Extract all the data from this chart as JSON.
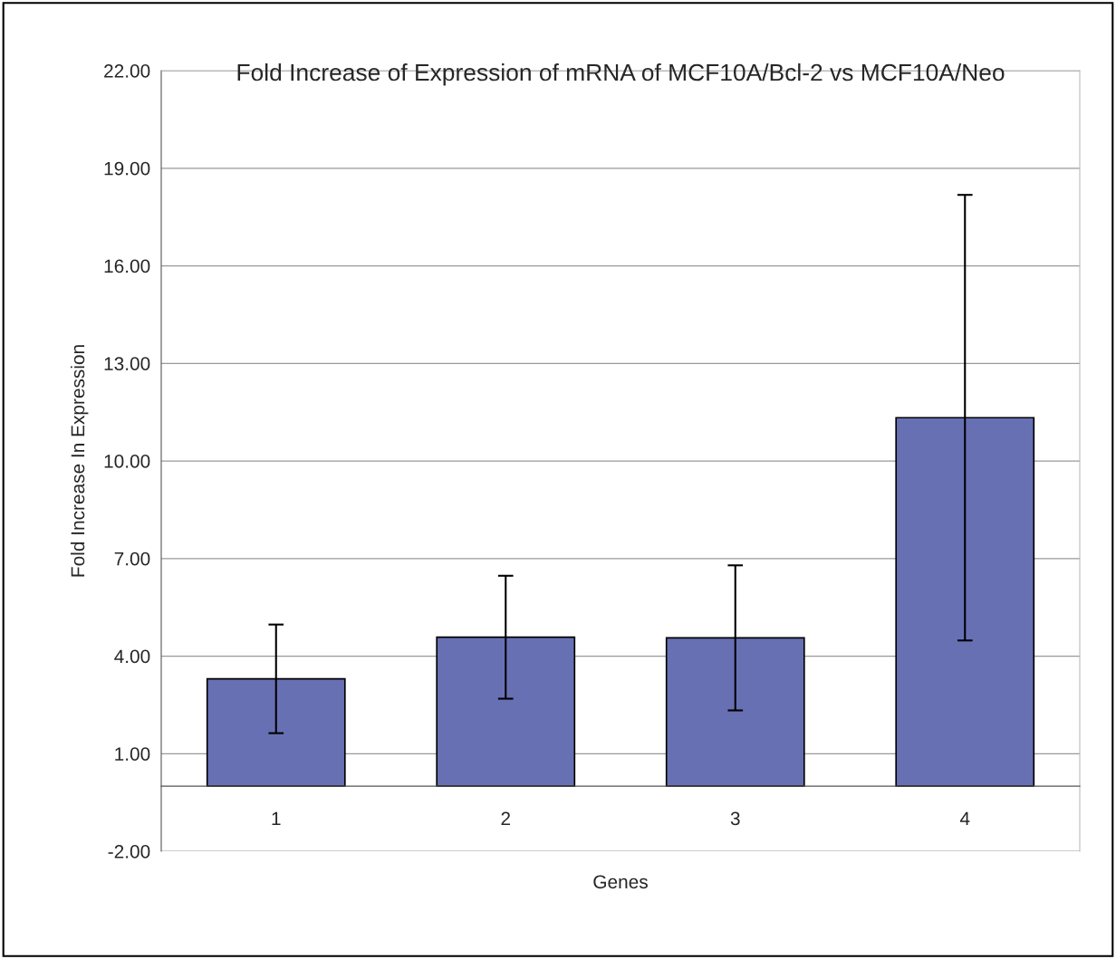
{
  "chart_data": {
    "type": "bar",
    "title": "Fold Increase of Expression of mRNA of MCF10A/Bcl-2 vs MCF10A/Neo",
    "xlabel": "Genes",
    "ylabel": "Fold Increase In Expression",
    "categories": [
      "1",
      "2",
      "3",
      "4"
    ],
    "values": [
      3.3,
      4.58,
      4.56,
      11.33
    ],
    "errors": [
      1.67,
      1.89,
      2.23,
      6.85
    ],
    "color": "#6870b4",
    "ylim": [
      -2,
      22
    ],
    "yticks": [
      {
        "value": -2,
        "label": "-2.00"
      },
      {
        "value": 1,
        "label": "1.00"
      },
      {
        "value": 4,
        "label": "4.00"
      },
      {
        "value": 7,
        "label": "7.00"
      },
      {
        "value": 10,
        "label": "10.00"
      },
      {
        "value": 13,
        "label": "13.00"
      },
      {
        "value": 16,
        "label": "16.00"
      },
      {
        "value": 19,
        "label": "19.00"
      },
      {
        "value": 22,
        "label": "22.00"
      }
    ],
    "grid": "y"
  }
}
